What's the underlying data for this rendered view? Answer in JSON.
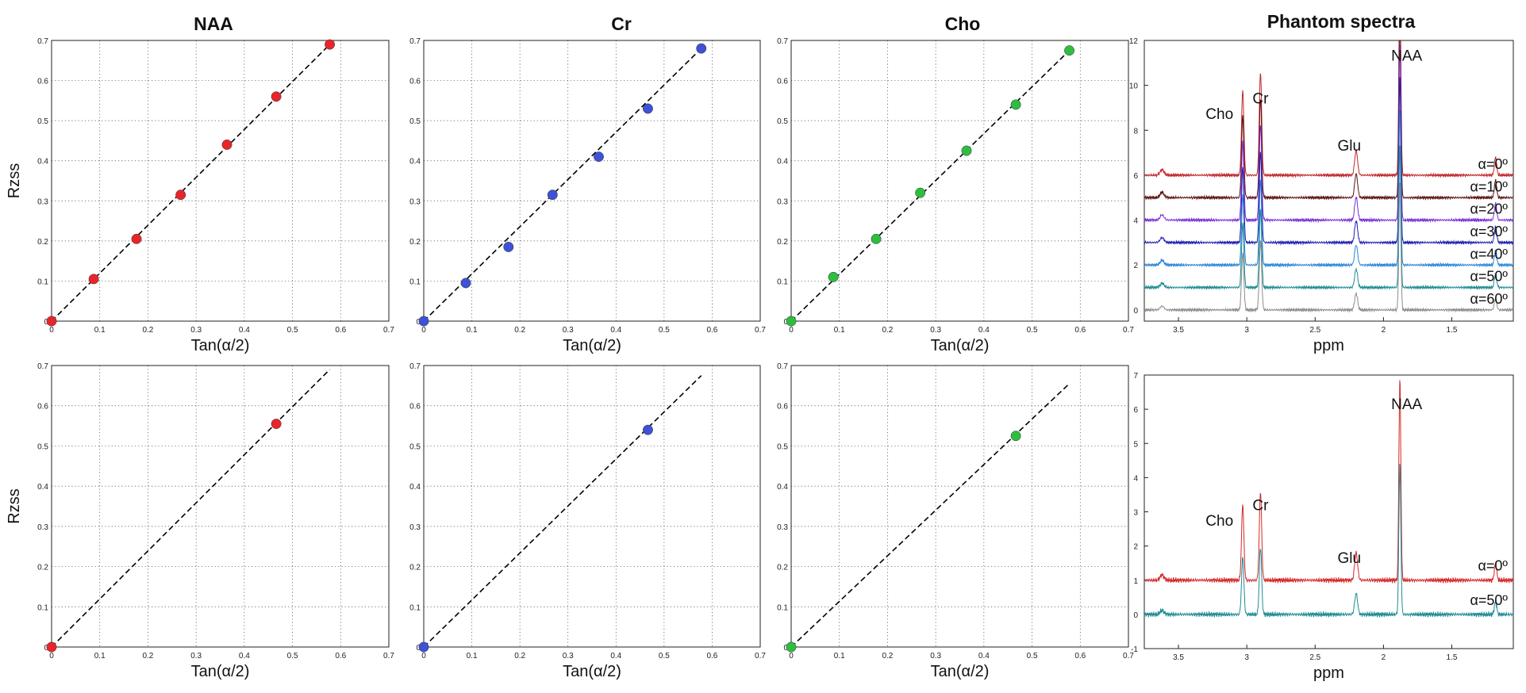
{
  "column_titles": [
    "NAA",
    "Cr",
    "Cho",
    "Phantom spectra"
  ],
  "chart_data": [
    {
      "type": "scatter",
      "panel": "row1-naa",
      "title": "NAA",
      "xlabel": "Tan(α/2)",
      "ylabel": "Rzss",
      "xlim": [
        0,
        0.7
      ],
      "ylim": [
        0,
        0.7
      ],
      "xticks": [
        "0",
        "0.1",
        "0.2",
        "0.3",
        "0.4",
        "0.5",
        "0.6",
        "0.7"
      ],
      "yticks": [
        "0",
        "0.1",
        "0.2",
        "0.3",
        "0.4",
        "0.5",
        "0.6",
        "0.7"
      ],
      "grid": true,
      "color": "#e8252a",
      "fit_line": {
        "x": [
          0,
          0.5774
        ],
        "y": [
          0,
          0.69
        ]
      },
      "x": [
        0,
        0.0875,
        0.1763,
        0.2679,
        0.364,
        0.4663,
        0.5774
      ],
      "y": [
        0,
        0.105,
        0.205,
        0.315,
        0.44,
        0.56,
        0.69
      ]
    },
    {
      "type": "scatter",
      "panel": "row1-cr",
      "title": "Cr",
      "xlabel": "Tan(α/2)",
      "ylabel": "",
      "xlim": [
        0,
        0.7
      ],
      "ylim": [
        0,
        0.7
      ],
      "xticks": [
        "0",
        "0.1",
        "0.2",
        "0.3",
        "0.4",
        "0.5",
        "0.6",
        "0.7"
      ],
      "yticks": [
        "0",
        "0.1",
        "0.2",
        "0.3",
        "0.4",
        "0.5",
        "0.6",
        "0.7"
      ],
      "grid": true,
      "color": "#3d52d5",
      "fit_line": {
        "x": [
          0,
          0.5774
        ],
        "y": [
          0,
          0.68
        ]
      },
      "x": [
        0,
        0.0875,
        0.1763,
        0.2679,
        0.364,
        0.4663,
        0.5774
      ],
      "y": [
        0,
        0.095,
        0.185,
        0.315,
        0.41,
        0.53,
        0.68
      ]
    },
    {
      "type": "scatter",
      "panel": "row1-cho",
      "title": "Cho",
      "xlabel": "Tan(α/2)",
      "ylabel": "",
      "xlim": [
        0,
        0.7
      ],
      "ylim": [
        0,
        0.7
      ],
      "xticks": [
        "0",
        "0.1",
        "0.2",
        "0.3",
        "0.4",
        "0.5",
        "0.6",
        "0.7"
      ],
      "yticks": [
        "0",
        "0.1",
        "0.2",
        "0.3",
        "0.4",
        "0.5",
        "0.6",
        "0.7"
      ],
      "grid": true,
      "color": "#2ebd3f",
      "fit_line": {
        "x": [
          0,
          0.5774
        ],
        "y": [
          0,
          0.675
        ]
      },
      "x": [
        0,
        0.0875,
        0.1763,
        0.2679,
        0.364,
        0.4663,
        0.5774
      ],
      "y": [
        0,
        0.11,
        0.205,
        0.32,
        0.425,
        0.54,
        0.675
      ]
    },
    {
      "type": "line",
      "panel": "row1-spectra",
      "title": "Phantom spectra",
      "xlabel": "ppm",
      "ylabel": "",
      "xlim": [
        3.75,
        1.05
      ],
      "ylim": [
        -0.5,
        12
      ],
      "reversed_x": true,
      "xticks": [
        "3.5",
        "3",
        "2.5",
        "2",
        "1.5"
      ],
      "yticks": [
        "0",
        "2",
        "4",
        "6",
        "8",
        "10",
        "12"
      ],
      "grid": false,
      "peak_labels": [
        {
          "text": "Cho",
          "x": 3.2,
          "y": 8.5
        },
        {
          "text": "Cr",
          "x": 2.9,
          "y": 9.2
        },
        {
          "text": "Glu",
          "x": 2.25,
          "y": 7.1
        },
        {
          "text": "NAA",
          "x": 1.83,
          "y": 11.1
        }
      ],
      "series": [
        {
          "label": "α=0º",
          "offset": 6,
          "color": "#c0262a",
          "scale": 1.0
        },
        {
          "label": "α=10º",
          "offset": 5,
          "color": "#5c1111",
          "scale": 0.97
        },
        {
          "label": "α=20º",
          "offset": 4,
          "color": "#7a2fd6",
          "scale": 0.93
        },
        {
          "label": "α=30º",
          "offset": 3,
          "color": "#1f1fb0",
          "scale": 0.88
        },
        {
          "label": "α=40º",
          "offset": 2,
          "color": "#2a86d8",
          "scale": 0.82
        },
        {
          "label": "α=50º",
          "offset": 1,
          "color": "#1e8c94",
          "scale": 0.75
        },
        {
          "label": "α=60º",
          "offset": 0,
          "color": "#8c8c8c",
          "scale": 0.67
        }
      ]
    },
    {
      "type": "scatter",
      "panel": "row2-naa",
      "title": "",
      "xlabel": "Tan(α/2)",
      "ylabel": "Rzss",
      "xlim": [
        0,
        0.7
      ],
      "ylim": [
        0,
        0.7
      ],
      "xticks": [
        "0",
        "0.1",
        "0.2",
        "0.3",
        "0.4",
        "0.5",
        "0.6",
        "0.7"
      ],
      "yticks": [
        "0",
        "0.1",
        "0.2",
        "0.3",
        "0.4",
        "0.5",
        "0.6",
        "0.7"
      ],
      "grid": true,
      "color": "#e8252a",
      "fit_line": {
        "x": [
          0,
          0.5774
        ],
        "y": [
          0,
          0.69
        ]
      },
      "x": [
        0,
        0.4663
      ],
      "y": [
        0,
        0.555
      ]
    },
    {
      "type": "scatter",
      "panel": "row2-cr",
      "title": "",
      "xlabel": "Tan(α/2)",
      "ylabel": "",
      "xlim": [
        0,
        0.7
      ],
      "ylim": [
        0,
        0.7
      ],
      "xticks": [
        "0",
        "0.1",
        "0.2",
        "0.3",
        "0.4",
        "0.5",
        "0.6",
        "0.7"
      ],
      "yticks": [
        "0",
        "0.1",
        "0.2",
        "0.3",
        "0.4",
        "0.5",
        "0.6",
        "0.7"
      ],
      "grid": true,
      "color": "#3d52d5",
      "fit_line": {
        "x": [
          0,
          0.5774
        ],
        "y": [
          0,
          0.675
        ]
      },
      "x": [
        0,
        0.4663
      ],
      "y": [
        0,
        0.54
      ]
    },
    {
      "type": "scatter",
      "panel": "row2-cho",
      "title": "",
      "xlabel": "Tan(α/2)",
      "ylabel": "",
      "xlim": [
        0,
        0.7
      ],
      "ylim": [
        0,
        0.7
      ],
      "xticks": [
        "0",
        "0.1",
        "0.2",
        "0.3",
        "0.4",
        "0.5",
        "0.6",
        "0.7"
      ],
      "yticks": [
        "0",
        "0.1",
        "0.2",
        "0.3",
        "0.4",
        "0.5",
        "0.6",
        "0.7"
      ],
      "grid": true,
      "color": "#2ebd3f",
      "fit_line": {
        "x": [
          0,
          0.5774
        ],
        "y": [
          0,
          0.655
        ]
      },
      "x": [
        0,
        0.4663
      ],
      "y": [
        0,
        0.525
      ]
    },
    {
      "type": "line",
      "panel": "row2-spectra",
      "title": "",
      "xlabel": "ppm",
      "ylabel": "",
      "xlim": [
        3.75,
        1.05
      ],
      "ylim": [
        -1,
        7
      ],
      "reversed_x": true,
      "xticks": [
        "3.5",
        "3",
        "2.5",
        "2",
        "1.5"
      ],
      "yticks": [
        "-1",
        "0",
        "1",
        "2",
        "3",
        "4",
        "5",
        "6",
        "7"
      ],
      "grid": false,
      "peak_labels": [
        {
          "text": "Cho",
          "x": 3.2,
          "y": 2.6
        },
        {
          "text": "Cr",
          "x": 2.9,
          "y": 3.05
        },
        {
          "text": "Glu",
          "x": 2.25,
          "y": 1.5
        },
        {
          "text": "NAA",
          "x": 1.83,
          "y": 6.0
        }
      ],
      "series": [
        {
          "label": "α=0º",
          "offset": 1,
          "color": "#d42a2a",
          "scale": 0.62
        },
        {
          "label": "α=50º",
          "offset": 0,
          "color": "#1e8c94",
          "scale": 0.47
        }
      ]
    }
  ]
}
